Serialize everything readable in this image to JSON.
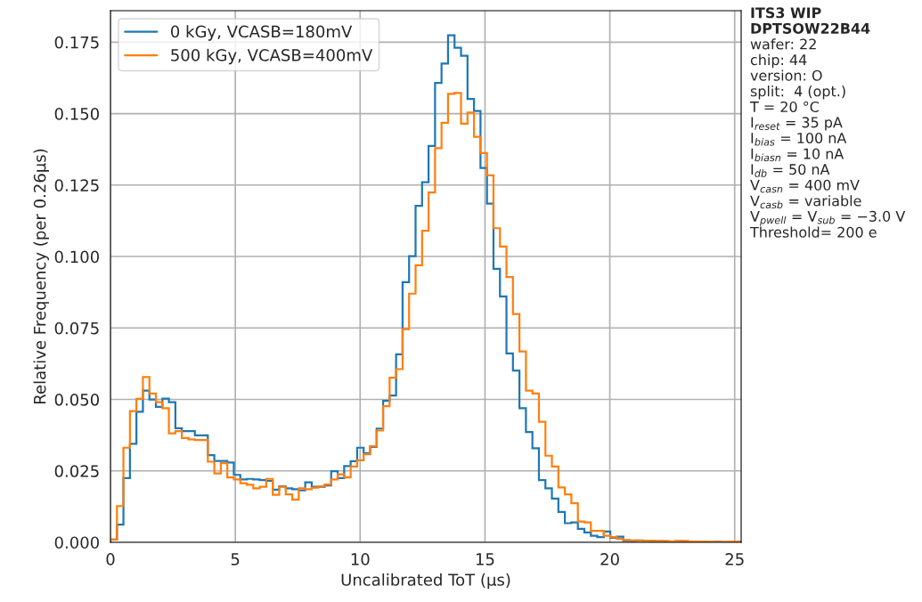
{
  "chart_data": {
    "type": "histogram",
    "xlabel": "Uncalibrated ToT (μs)",
    "ylabel": "Relative Frequency (per 0.26μs)",
    "bins": [
      0,
      0.26,
      0.52,
      0.78,
      1.04,
      1.3,
      1.56,
      1.82,
      2.08,
      2.34,
      2.6,
      2.86,
      3.12,
      3.38,
      3.64,
      3.9,
      4.16,
      4.42,
      4.68,
      4.94,
      5.2,
      5.46,
      5.72,
      5.98,
      6.24,
      6.5,
      6.76,
      7.02,
      7.28,
      7.54,
      7.8,
      8.06,
      8.32,
      8.58,
      8.84,
      9.1,
      9.36,
      9.62,
      9.88,
      10.14,
      10.4,
      10.66,
      10.92,
      11.18,
      11.44,
      11.7,
      11.96,
      12.22,
      12.48,
      12.74,
      13,
      13.26,
      13.52,
      13.78,
      14.04,
      14.3,
      14.56,
      14.82,
      15.08,
      15.34,
      15.6,
      15.86,
      16.12,
      16.38,
      16.64,
      16.9,
      17.16,
      17.42,
      17.68,
      17.94,
      18.2,
      18.46,
      18.72,
      18.98,
      19.24,
      19.5,
      19.76,
      20.02,
      20.28,
      20.54,
      20.8,
      21.06,
      21.32,
      21.58,
      21.84,
      22.1,
      22.36,
      22.62,
      22.88,
      23.14,
      23.4,
      23.66,
      23.92,
      24.18,
      24.44,
      24.7,
      24.96,
      25.22
    ],
    "series": [
      {
        "name": "0 kGy, VCASB=180mV",
        "color": "#1f77b4",
        "values": [
          0.001,
          0.0062,
          0.0225,
          0.0345,
          0.0457,
          0.0531,
          0.05,
          0.0474,
          0.0503,
          0.049,
          0.0399,
          0.0389,
          0.0389,
          0.0374,
          0.0374,
          0.0305,
          0.0285,
          0.0285,
          0.0279,
          0.0236,
          0.022,
          0.0222,
          0.022,
          0.0218,
          0.0215,
          0.0184,
          0.0196,
          0.0189,
          0.0186,
          0.0182,
          0.021,
          0.0194,
          0.0194,
          0.0199,
          0.0249,
          0.0225,
          0.0267,
          0.0284,
          0.0331,
          0.0312,
          0.0334,
          0.0398,
          0.0495,
          0.0514,
          0.0658,
          0.091,
          0.1001,
          0.1177,
          0.126,
          0.1387,
          0.1607,
          0.1675,
          0.1774,
          0.173,
          0.1702,
          0.1551,
          0.1509,
          0.131,
          0.1185,
          0.0957,
          0.086,
          0.0661,
          0.0601,
          0.0469,
          0.0386,
          0.0329,
          0.0218,
          0.0189,
          0.0153,
          0.0106,
          0.0067,
          0.007,
          0.0047,
          0.0035,
          0.0023,
          0.0018,
          0.0038,
          0.0016,
          0.002,
          0.0006,
          0.0005,
          0.0007,
          0.0005,
          0.0004,
          0.0004,
          0.0003,
          0.0003,
          0.0004,
          0.0002,
          0.0002,
          0.0003,
          0.0002,
          0.0001,
          0.0002,
          0.0001,
          0.0001,
          0.0001
        ]
      },
      {
        "name": "500 kGy, VCASB=400mV",
        "color": "#ff7f0e",
        "values": [
          0.001,
          0.0127,
          0.0331,
          0.0459,
          0.0502,
          0.0578,
          0.0521,
          0.049,
          0.0469,
          0.0381,
          0.0389,
          0.0365,
          0.036,
          0.0358,
          0.0358,
          0.0282,
          0.0241,
          0.0277,
          0.0227,
          0.022,
          0.0207,
          0.0201,
          0.0189,
          0.0194,
          0.0222,
          0.0166,
          0.0194,
          0.0168,
          0.0149,
          0.0189,
          0.0186,
          0.0191,
          0.0196,
          0.0202,
          0.022,
          0.0238,
          0.0227,
          0.0265,
          0.0287,
          0.0308,
          0.0336,
          0.0391,
          0.0476,
          0.0576,
          0.0606,
          0.0746,
          0.087,
          0.0969,
          0.109,
          0.1224,
          0.1379,
          0.1468,
          0.1569,
          0.1572,
          0.1465,
          0.1504,
          0.1419,
          0.1362,
          0.1284,
          0.1099,
          0.1035,
          0.0928,
          0.0799,
          0.0668,
          0.0531,
          0.0521,
          0.0422,
          0.0303,
          0.0265,
          0.0192,
          0.0168,
          0.0137,
          0.0073,
          0.007,
          0.004,
          0.004,
          0.0023,
          0.0018,
          0.0012,
          0.0008,
          0.0007,
          0.0006,
          0.0005,
          0.0006,
          0.0004,
          0.0005,
          0.0003,
          0.0004,
          0.0005,
          0.0003,
          0.0003,
          0.0002,
          0.0002,
          0.0001,
          0.0001,
          0.0002,
          0.0003
        ]
      }
    ],
    "xlim": [
      0,
      25.26
    ],
    "ylim": [
      0,
      0.186
    ],
    "xticks": [
      0,
      5,
      10,
      15,
      20,
      25
    ],
    "yticks": [
      {
        "value": 0,
        "label": "0.000"
      },
      {
        "value": 0.025,
        "label": "0.025"
      },
      {
        "value": 0.05,
        "label": "0.050"
      },
      {
        "value": 0.075,
        "label": "0.075"
      },
      {
        "value": 0.1,
        "label": "0.100"
      },
      {
        "value": 0.125,
        "label": "0.125"
      },
      {
        "value": 0.15,
        "label": "0.150"
      },
      {
        "value": 0.175,
        "label": "0.175"
      }
    ],
    "grid": true,
    "legend": "top left",
    "annotations": [
      "ITS3 WIP",
      "DPTSOW22B44",
      "wafer: 22",
      "chip: 44",
      "version: O",
      "split:  4 (opt.)",
      "T = 20 °C",
      "I$_{reset}$ = 35 pA",
      "I$_{bias}$ = 100 nA",
      "I$_{biasn}$ = 10 nA",
      "I$_{db}$ = 50 nA",
      "V$_{casn}$ = 400 mV",
      "V$_{casb}$ = variable",
      "V$_{pwell}$ = V$_{sub}$ = −3.0 V",
      "Threshold= 200 e"
    ]
  }
}
